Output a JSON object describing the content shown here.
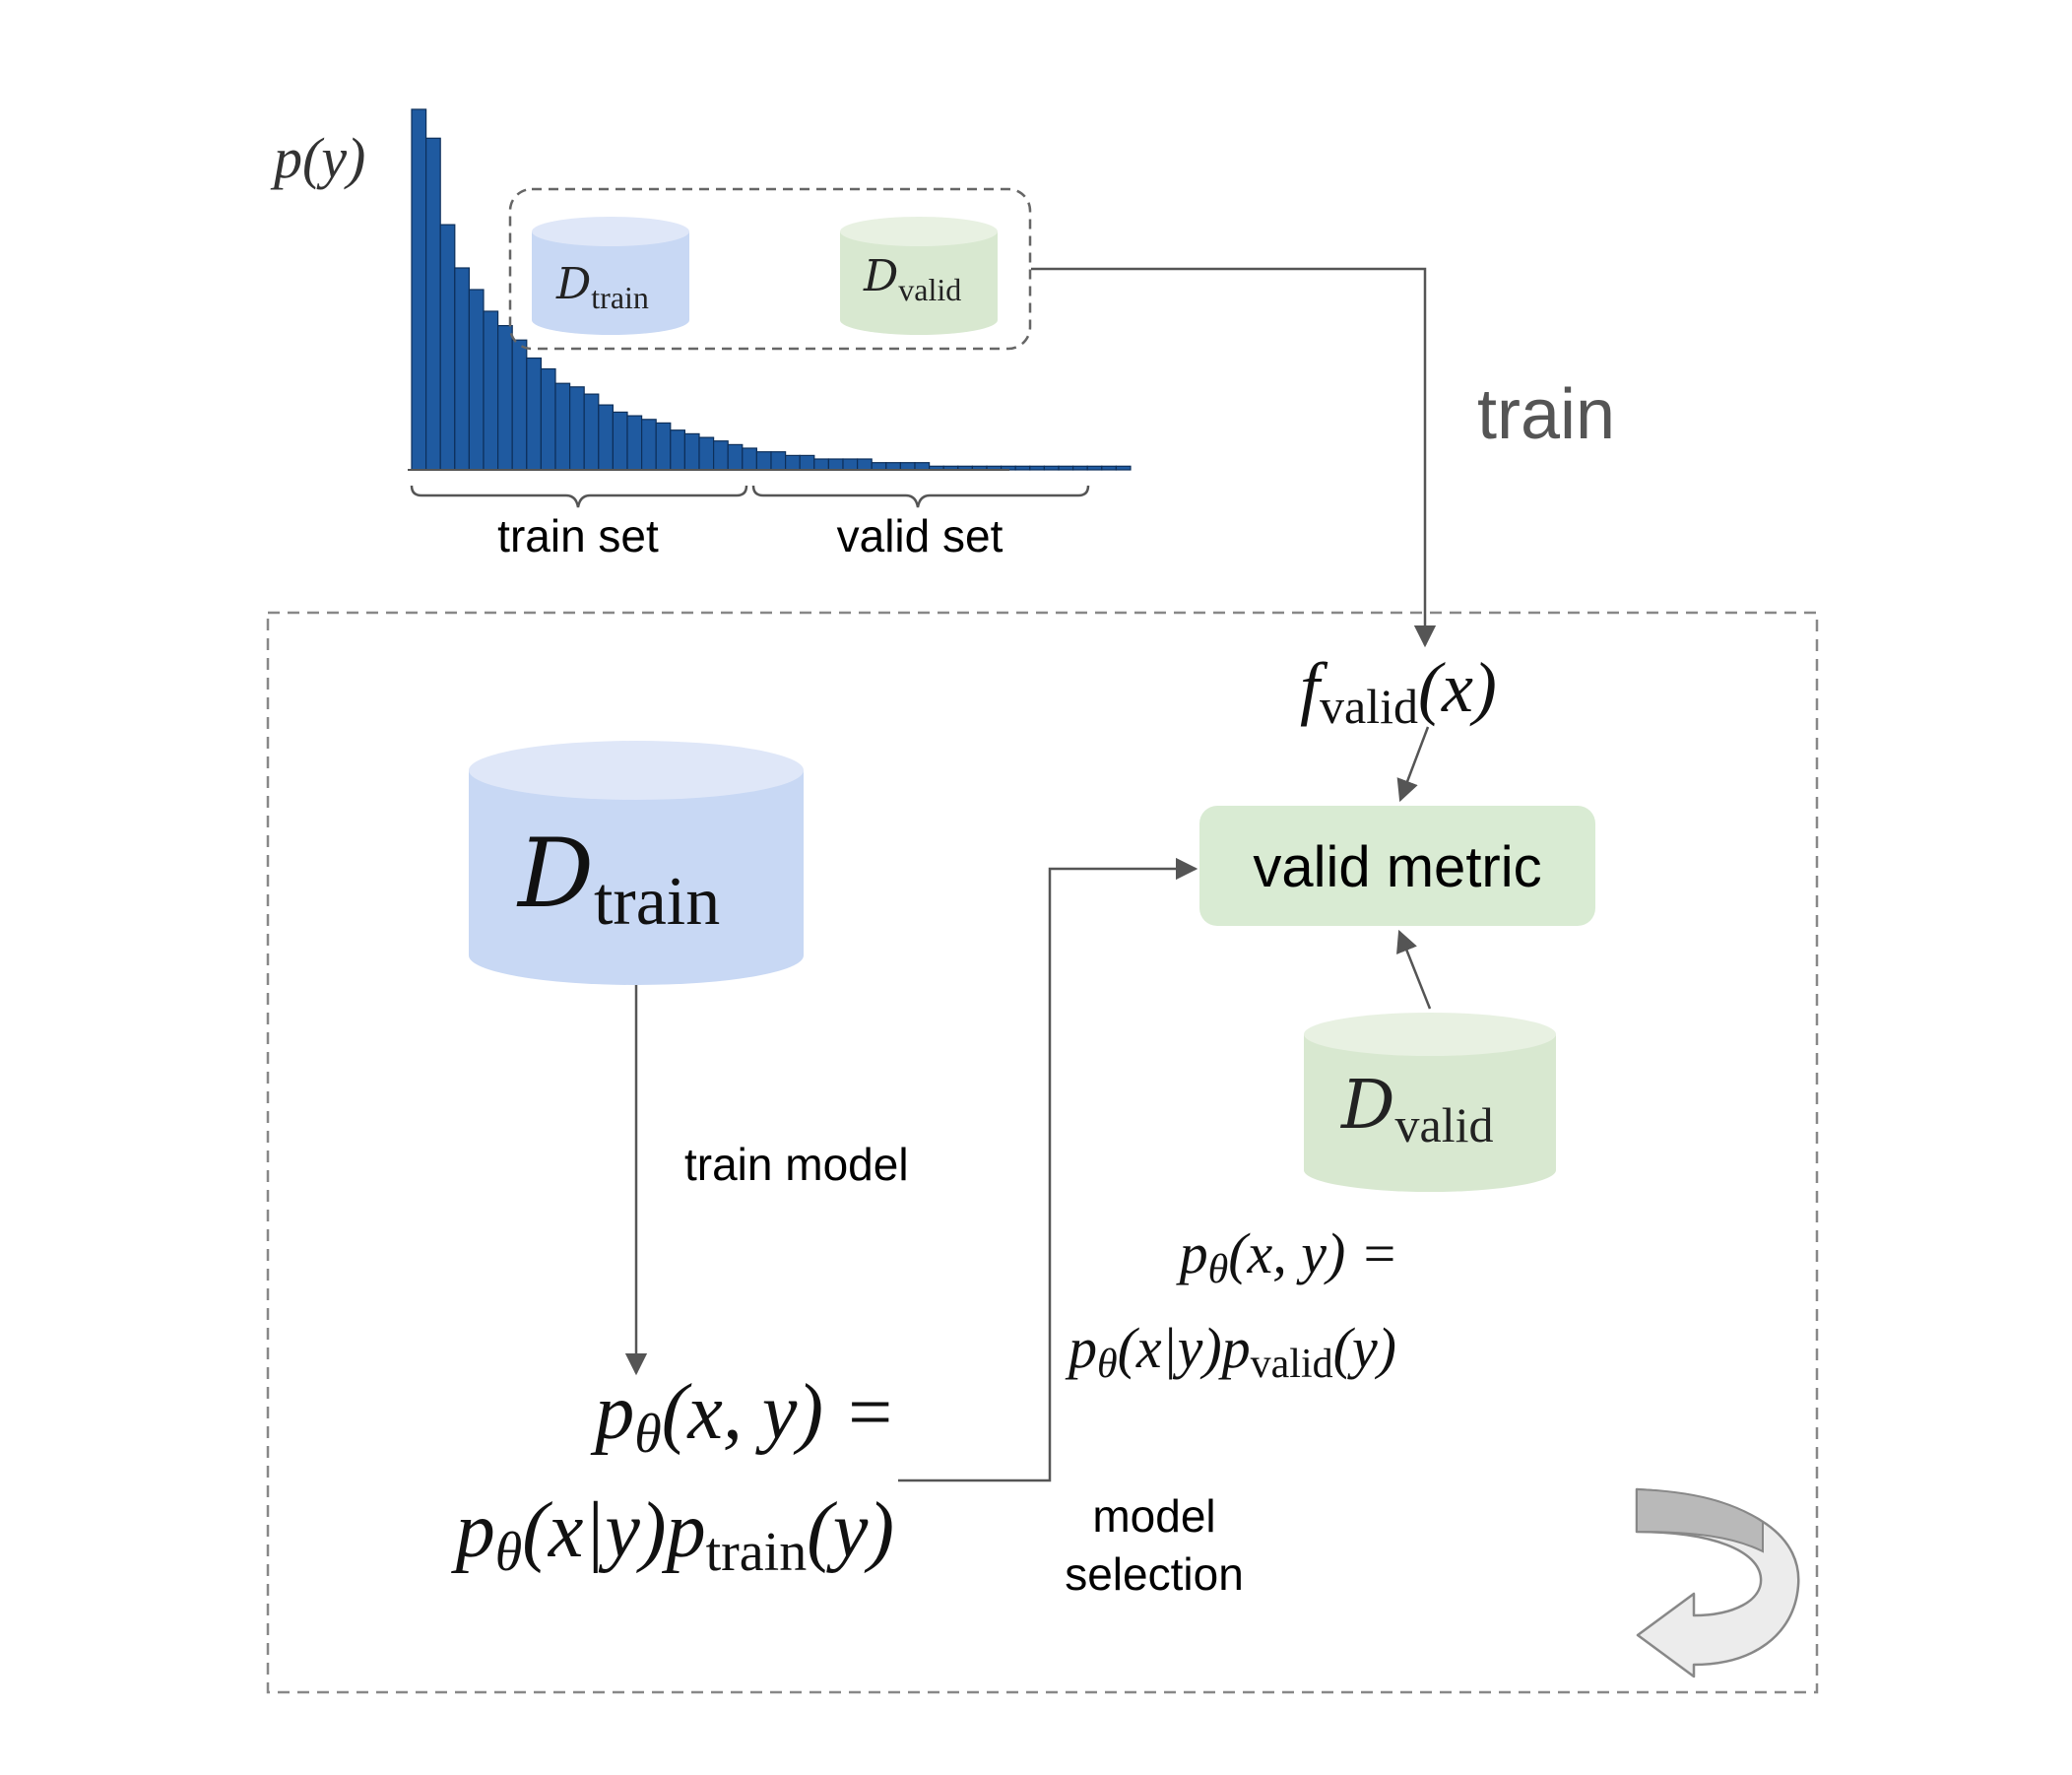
{
  "chart_data": {
    "type": "bar",
    "ylabel": "p(y)",
    "values": [
      100,
      92,
      68,
      56,
      50,
      44,
      40,
      36,
      31,
      28,
      24,
      23,
      21,
      18,
      16,
      15,
      14,
      13,
      11,
      10,
      9,
      8,
      7,
      6,
      5,
      5,
      4,
      4,
      3,
      3,
      3,
      3,
      2,
      2,
      2,
      2,
      1,
      1,
      1,
      1,
      1,
      1,
      1,
      1,
      1,
      1,
      1,
      1,
      1,
      1
    ],
    "grid": false
  },
  "labels": {
    "ylabel_base": "p",
    "ylabel_arg": "(y)",
    "train_set": "train set",
    "valid_set": "valid set",
    "train": "train",
    "train_model": "train model",
    "model_selection_line1": "model",
    "model_selection_line2": "selection",
    "valid_metric": "valid metric"
  },
  "databases": {
    "small_train": {
      "symbol": "D",
      "subscript": "train",
      "color": "#c8d8f4"
    },
    "small_valid": {
      "symbol": "D",
      "subscript": "valid",
      "color": "#d8e8d0"
    },
    "big_train": {
      "symbol": "D",
      "subscript": "train",
      "color": "#c8d8f4"
    },
    "big_valid": {
      "symbol": "D",
      "subscript": "valid",
      "color": "#d8e8d0"
    }
  },
  "formulas": {
    "f_valid": {
      "f": "f",
      "sub": "valid",
      "arg": "(x)"
    },
    "train_joint_line1": {
      "p": "p",
      "theta": "θ",
      "rest": "(x, y) ="
    },
    "train_joint_line2": {
      "p1": "p",
      "theta1": "θ",
      "mid": "(x|y)",
      "p2": "p",
      "sub2": "train",
      "end": "(y)"
    },
    "valid_joint_line1": {
      "p": "p",
      "theta": "θ",
      "rest": "(x, y) ="
    },
    "valid_joint_line2": {
      "p1": "p",
      "theta1": "θ",
      "mid": "(x|y)",
      "p2": "p",
      "sub2": "valid",
      "end": "(y)"
    }
  },
  "colors": {
    "bar_fill": "#1f5aa0",
    "bar_stroke": "#0d2f5a",
    "train_db": "#c8d8f4",
    "train_db_top": "#dfe7f8",
    "valid_db": "#d8e8d0",
    "valid_db_top": "#e8f1e2",
    "metric_box": "#d9ebd3",
    "line": "#555555",
    "dash": "#888888"
  },
  "icons": {
    "cycle": "curved-return-arrow-icon"
  }
}
